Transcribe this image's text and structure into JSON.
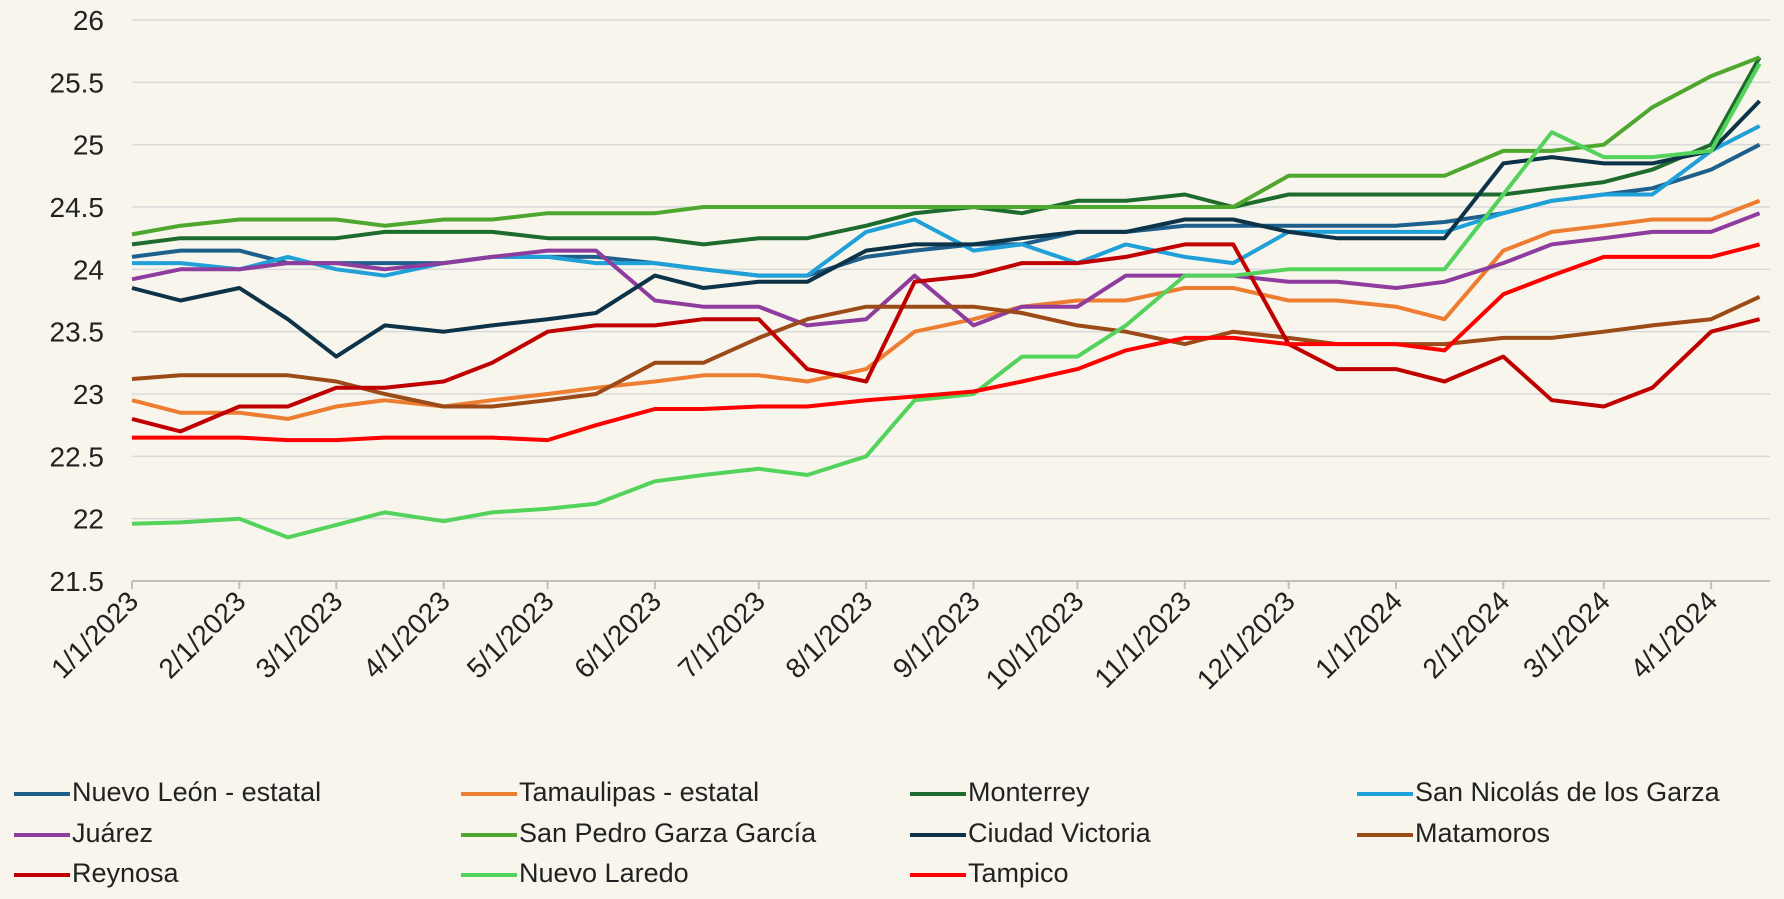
{
  "chart_data": {
    "type": "line",
    "x": [
      "1/1/2023",
      "1/15/2023",
      "2/1/2023",
      "2/15/2023",
      "3/1/2023",
      "3/15/2023",
      "4/1/2023",
      "4/15/2023",
      "5/1/2023",
      "5/15/2023",
      "6/1/2023",
      "6/15/2023",
      "7/1/2023",
      "7/15/2023",
      "8/1/2023",
      "8/15/2023",
      "9/1/2023",
      "9/15/2023",
      "10/1/2023",
      "10/15/2023",
      "11/1/2023",
      "11/15/2023",
      "12/1/2023",
      "12/15/2023",
      "1/1/2024",
      "1/15/2024",
      "2/1/2024",
      "2/15/2024",
      "3/1/2024",
      "3/15/2024",
      "4/1/2024",
      "4/15/2024"
    ],
    "xlim": [
      "1/1/2023",
      "4/18/2024"
    ],
    "xticks": [
      "1/1/2023",
      "2/1/2023",
      "3/1/2023",
      "4/1/2023",
      "5/1/2023",
      "6/1/2023",
      "7/1/2023",
      "8/1/2023",
      "9/1/2023",
      "10/1/2023",
      "11/1/2023",
      "12/1/2023",
      "1/1/2024",
      "2/1/2024",
      "3/1/2024",
      "4/1/2024"
    ],
    "ylim": [
      21.5,
      26
    ],
    "yticks": [
      21.5,
      22,
      22.5,
      23,
      23.5,
      24,
      24.5,
      25,
      25.5,
      26
    ],
    "grid": true,
    "series": [
      {
        "name": "Nuevo León - estatal",
        "color": "#1f5f8b",
        "values": [
          24.1,
          24.15,
          24.15,
          24.05,
          24.05,
          24.05,
          24.05,
          24.1,
          24.1,
          24.1,
          24.05,
          24.0,
          23.95,
          23.95,
          24.1,
          24.15,
          24.2,
          24.2,
          24.3,
          24.3,
          24.35,
          24.35,
          24.35,
          24.35,
          24.35,
          24.38,
          24.45,
          24.55,
          24.6,
          24.65,
          24.8,
          25.0
        ]
      },
      {
        "name": "Tamaulipas - estatal",
        "color": "#ed7d31",
        "values": [
          22.95,
          22.85,
          22.85,
          22.8,
          22.9,
          22.95,
          22.9,
          22.95,
          23.0,
          23.05,
          23.1,
          23.15,
          23.15,
          23.1,
          23.2,
          23.5,
          23.6,
          23.7,
          23.75,
          23.75,
          23.85,
          23.85,
          23.75,
          23.75,
          23.7,
          23.6,
          24.15,
          24.3,
          24.35,
          24.4,
          24.4,
          24.55
        ]
      },
      {
        "name": "Monterrey",
        "color": "#1e6b2e",
        "values": [
          24.2,
          24.25,
          24.25,
          24.25,
          24.25,
          24.3,
          24.3,
          24.3,
          24.25,
          24.25,
          24.25,
          24.2,
          24.25,
          24.25,
          24.35,
          24.45,
          24.5,
          24.45,
          24.55,
          24.55,
          24.6,
          24.5,
          24.6,
          24.6,
          24.6,
          24.6,
          24.6,
          24.65,
          24.7,
          24.8,
          25.0,
          25.7
        ]
      },
      {
        "name": "San Nicolás de los Garza",
        "color": "#1fa0d8",
        "values": [
          24.05,
          24.05,
          24.0,
          24.1,
          24.0,
          23.95,
          24.05,
          24.1,
          24.1,
          24.05,
          24.05,
          24.0,
          23.95,
          23.95,
          24.3,
          24.4,
          24.15,
          24.2,
          24.05,
          24.2,
          24.1,
          24.05,
          24.3,
          24.3,
          24.3,
          24.3,
          24.45,
          24.55,
          24.6,
          24.6,
          24.95,
          25.15
        ]
      },
      {
        "name": "Juárez",
        "color": "#8e3d9e",
        "values": [
          23.92,
          24.0,
          24.0,
          24.05,
          24.05,
          24.0,
          24.05,
          24.1,
          24.15,
          24.15,
          23.75,
          23.7,
          23.7,
          23.55,
          23.6,
          23.95,
          23.55,
          23.7,
          23.7,
          23.95,
          23.95,
          23.95,
          23.9,
          23.9,
          23.85,
          23.9,
          24.05,
          24.2,
          24.25,
          24.3,
          24.3,
          24.45
        ]
      },
      {
        "name": "San Pedro Garza García",
        "color": "#4ea72e",
        "values": [
          24.28,
          24.35,
          24.4,
          24.4,
          24.4,
          24.35,
          24.4,
          24.4,
          24.45,
          24.45,
          24.45,
          24.5,
          24.5,
          24.5,
          24.5,
          24.5,
          24.5,
          24.5,
          24.5,
          24.5,
          24.5,
          24.5,
          24.75,
          24.75,
          24.75,
          24.75,
          24.95,
          24.95,
          25.0,
          25.3,
          25.55,
          25.7
        ]
      },
      {
        "name": "Ciudad Victoria",
        "color": "#0d3349",
        "values": [
          23.85,
          23.75,
          23.85,
          23.6,
          23.3,
          23.55,
          23.5,
          23.55,
          23.6,
          23.65,
          23.95,
          23.85,
          23.9,
          23.9,
          24.15,
          24.2,
          24.2,
          24.25,
          24.3,
          24.3,
          24.4,
          24.4,
          24.3,
          24.25,
          24.25,
          24.25,
          24.85,
          24.9,
          24.85,
          24.85,
          24.95,
          25.35
        ]
      },
      {
        "name": "Matamoros",
        "color": "#9c4a18",
        "values": [
          23.12,
          23.15,
          23.15,
          23.15,
          23.1,
          23.0,
          22.9,
          22.9,
          22.95,
          23.0,
          23.25,
          23.25,
          23.45,
          23.6,
          23.7,
          23.7,
          23.7,
          23.65,
          23.55,
          23.5,
          23.4,
          23.5,
          23.45,
          23.4,
          23.4,
          23.4,
          23.45,
          23.45,
          23.5,
          23.55,
          23.6,
          23.78
        ]
      },
      {
        "name": "Reynosa",
        "color": "#c00000",
        "values": [
          22.8,
          22.7,
          22.9,
          22.9,
          23.05,
          23.05,
          23.1,
          23.25,
          23.5,
          23.55,
          23.55,
          23.6,
          23.6,
          23.2,
          23.1,
          23.9,
          23.95,
          24.05,
          24.05,
          24.1,
          24.2,
          24.2,
          23.4,
          23.2,
          23.2,
          23.1,
          23.3,
          22.95,
          22.9,
          23.05,
          23.5,
          23.6
        ]
      },
      {
        "name": "Nuevo Laredo",
        "color": "#53d35b",
        "values": [
          21.96,
          21.97,
          22.0,
          21.85,
          21.95,
          22.05,
          21.98,
          22.05,
          22.08,
          22.12,
          22.3,
          22.35,
          22.4,
          22.35,
          22.5,
          22.95,
          23.0,
          23.3,
          23.3,
          23.55,
          23.95,
          23.95,
          24.0,
          24.0,
          24.0,
          24.0,
          24.6,
          25.1,
          24.9,
          24.9,
          24.95,
          25.65
        ]
      },
      {
        "name": "Tampico",
        "color": "#ff0000",
        "values": [
          22.65,
          22.65,
          22.65,
          22.63,
          22.63,
          22.65,
          22.65,
          22.65,
          22.63,
          22.75,
          22.88,
          22.88,
          22.9,
          22.9,
          22.95,
          22.98,
          23.02,
          23.1,
          23.2,
          23.35,
          23.45,
          23.45,
          23.4,
          23.4,
          23.4,
          23.35,
          23.8,
          23.95,
          24.1,
          24.1,
          24.1,
          24.2
        ]
      }
    ]
  }
}
